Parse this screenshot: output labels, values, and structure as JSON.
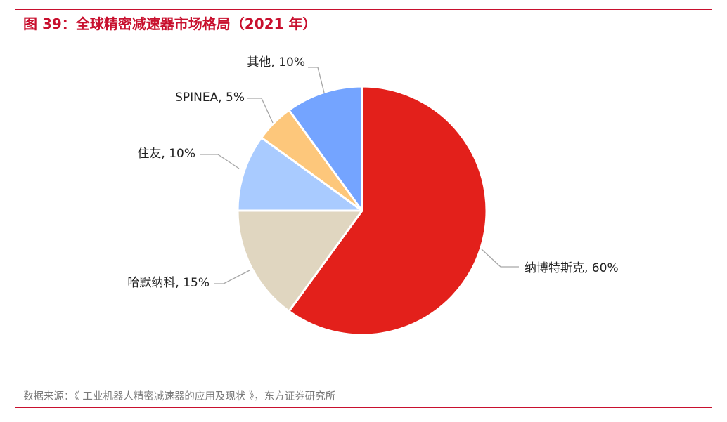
{
  "title": "图 39：全球精密减速器市场格局（2021 年）",
  "source": "数据来源：《 工业机器人精密减速器的应用及现状 》，东方证券研究所",
  "colors": {
    "accent": "#c8102e",
    "slice_nabtesco": "#e3201b",
    "slice_harmonic": "#e0d6c0",
    "slice_sumitomo": "#a9cbff",
    "slice_spinea": "#fdc77b",
    "slice_others": "#74a4ff"
  },
  "chart_data": {
    "type": "pie",
    "title": "全球精密减速器市场格局（2021 年）",
    "unit": "%",
    "slices": [
      {
        "name": "纳博特斯克",
        "value": 60,
        "label": "纳博特斯克, 60%",
        "color": "#e3201b"
      },
      {
        "name": "哈默纳科",
        "value": 15,
        "label": "哈默纳科, 15%",
        "color": "#e0d6c0"
      },
      {
        "name": "住友",
        "value": 10,
        "label": "住友, 10%",
        "color": "#a9cbff"
      },
      {
        "name": "SPINEA",
        "value": 5,
        "label": "SPINEA, 5%",
        "color": "#fdc77b"
      },
      {
        "name": "其他",
        "value": 10,
        "label": "其他, 10%",
        "color": "#74a4ff"
      }
    ]
  }
}
